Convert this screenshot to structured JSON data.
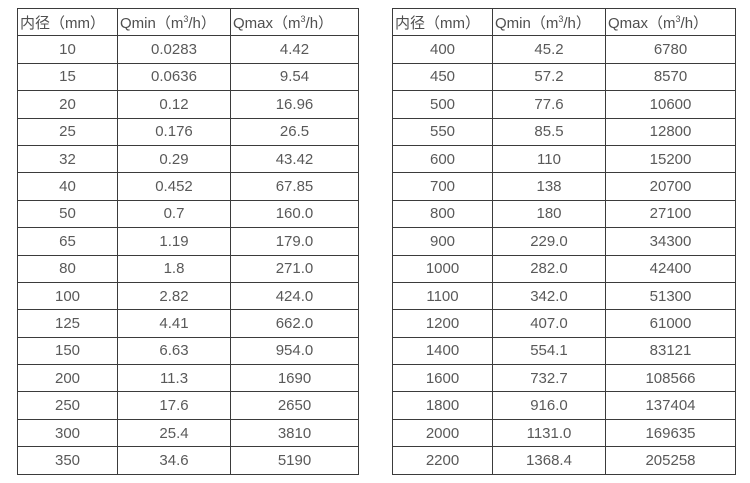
{
  "header": {
    "diameter_label": "内径（mm）",
    "qmin_prefix": "Qmin（m",
    "qmax_prefix": "Qmax（m",
    "superscript": "3",
    "unit_suffix": "/h）"
  },
  "colors": {
    "border": "#3b3b3b",
    "text": "#595959",
    "background": "#ffffff"
  },
  "chart_data": [
    {
      "type": "table",
      "title": "",
      "columns": [
        "内径（mm）",
        "Qmin（m³/h）",
        "Qmax（m³/h）"
      ],
      "rows": [
        [
          "10",
          "0.0283",
          "4.42"
        ],
        [
          "15",
          "0.0636",
          "9.54"
        ],
        [
          "20",
          "0.12",
          "16.96"
        ],
        [
          "25",
          "0.176",
          "26.5"
        ],
        [
          "32",
          "0.29",
          "43.42"
        ],
        [
          "40",
          "0.452",
          "67.85"
        ],
        [
          "50",
          "0.7",
          "160.0"
        ],
        [
          "65",
          "1.19",
          "179.0"
        ],
        [
          "80",
          "1.8",
          "271.0"
        ],
        [
          "100",
          "2.82",
          "424.0"
        ],
        [
          "125",
          "4.41",
          "662.0"
        ],
        [
          "150",
          "6.63",
          "954.0"
        ],
        [
          "200",
          "11.3",
          "1690"
        ],
        [
          "250",
          "17.6",
          "2650"
        ],
        [
          "300",
          "25.4",
          "3810"
        ],
        [
          "350",
          "34.6",
          "5190"
        ]
      ]
    },
    {
      "type": "table",
      "title": "",
      "columns": [
        "内径（mm）",
        "Qmin（m³/h）",
        "Qmax（m³/h）"
      ],
      "rows": [
        [
          "400",
          "45.2",
          "6780"
        ],
        [
          "450",
          "57.2",
          "8570"
        ],
        [
          "500",
          "77.6",
          "10600"
        ],
        [
          "550",
          "85.5",
          "12800"
        ],
        [
          "600",
          "110",
          "15200"
        ],
        [
          "700",
          "138",
          "20700"
        ],
        [
          "800",
          "180",
          "27100"
        ],
        [
          "900",
          "229.0",
          "34300"
        ],
        [
          "1000",
          "282.0",
          "42400"
        ],
        [
          "1100",
          "342.0",
          "51300"
        ],
        [
          "1200",
          "407.0",
          "61000"
        ],
        [
          "1400",
          "554.1",
          "83121"
        ],
        [
          "1600",
          "732.7",
          "108566"
        ],
        [
          "1800",
          "916.0",
          "137404"
        ],
        [
          "2000",
          "1131.0",
          "169635"
        ],
        [
          "2200",
          "1368.4",
          "205258"
        ]
      ]
    }
  ]
}
